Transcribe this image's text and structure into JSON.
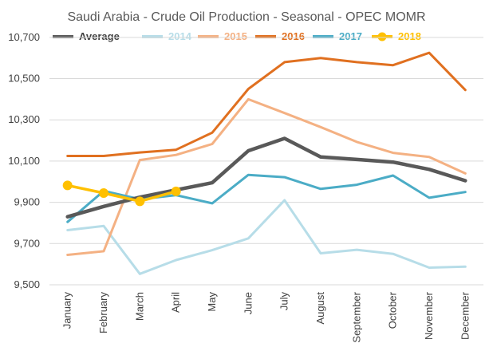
{
  "chart_data": {
    "type": "line",
    "title": "Saudi Arabia - Crude Oil Production - Seasonal - OPEC MOMR",
    "xlabel": "",
    "ylabel": "",
    "ylim": [
      9500,
      10800
    ],
    "y_ticks": [
      9500,
      9700,
      9900,
      10100,
      10300,
      10500,
      10700
    ],
    "y_tick_labels": [
      "9,500",
      "9,700",
      "9,900",
      "10,100",
      "10,300",
      "10,500",
      "10,700"
    ],
    "grid": true,
    "legend_position": "top",
    "categories": [
      "January",
      "February",
      "March",
      "April",
      "May",
      "June",
      "July",
      "August",
      "September",
      "October",
      "November",
      "December"
    ],
    "series": [
      {
        "name": "Average",
        "color": "#595959",
        "values": [
          9830,
          9880,
          9925,
          9960,
          9995,
          10150,
          10210,
          10120,
          10108,
          10095,
          10060,
          10005
        ]
      },
      {
        "name": "2014",
        "color": "#b7dde8",
        "values": [
          9765,
          9785,
          9553,
          9620,
          9668,
          9725,
          9910,
          9653,
          9670,
          9650,
          9583,
          9588
        ]
      },
      {
        "name": "2015",
        "color": "#f4b183",
        "values": [
          9645,
          9663,
          10105,
          10130,
          10183,
          10400,
          10333,
          10265,
          10193,
          10140,
          10120,
          10040
        ]
      },
      {
        "name": "2016",
        "color": "#e07020",
        "values": [
          10125,
          10125,
          10142,
          10155,
          10238,
          10450,
          10580,
          10600,
          10580,
          10565,
          10625,
          10445
        ]
      },
      {
        "name": "2017",
        "color": "#4bacc6",
        "values": [
          9805,
          9955,
          9915,
          9935,
          9895,
          10033,
          10022,
          9965,
          9985,
          10030,
          9922,
          9950
        ]
      },
      {
        "name": "2018",
        "color": "#ffc000",
        "values": [
          9982,
          9945,
          9905,
          9953,
          null,
          null,
          null,
          null,
          null,
          null,
          null,
          null
        ]
      }
    ]
  }
}
